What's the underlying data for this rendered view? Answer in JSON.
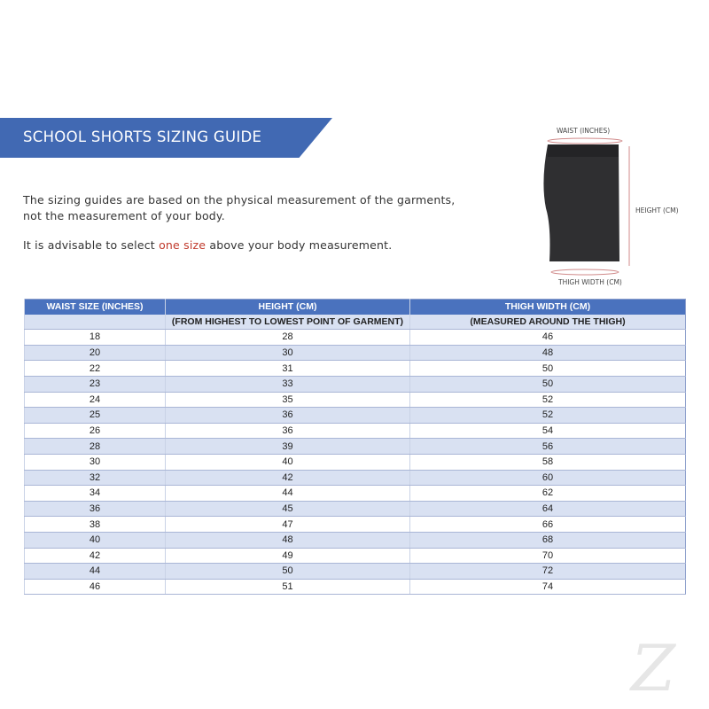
{
  "title": "SCHOOL SHORTS SIZING GUIDE",
  "intro_line1": "The sizing guides are based on the physical measurement of the garments,",
  "intro_line2": "not the measurement of your body.",
  "advice_pre": "It is advisable to select ",
  "advice_highlight": "one size",
  "advice_post": " above your body measurement.",
  "highlight_color": "#c0392b",
  "accent_color": "#4169b3",
  "figure": {
    "waist": "WAIST (INCHES)",
    "height": "HEIGHT (CM)",
    "thigh": "THIGH WIDTH (CM)"
  },
  "table": {
    "headers": [
      "WAIST SIZE (INCHES)",
      "HEIGHT (CM)",
      "THIGH WIDTH (CM)"
    ],
    "subheaders": [
      "",
      "(FROM HIGHEST TO LOWEST POINT OF GARMENT)",
      "(MEASURED AROUND THE THIGH)"
    ],
    "rows": [
      [
        "18",
        "28",
        "46"
      ],
      [
        "20",
        "30",
        "48"
      ],
      [
        "22",
        "31",
        "50"
      ],
      [
        "23",
        "33",
        "50"
      ],
      [
        "24",
        "35",
        "52"
      ],
      [
        "25",
        "36",
        "52"
      ],
      [
        "26",
        "36",
        "54"
      ],
      [
        "28",
        "39",
        "56"
      ],
      [
        "30",
        "40",
        "58"
      ],
      [
        "32",
        "42",
        "60"
      ],
      [
        "34",
        "44",
        "62"
      ],
      [
        "36",
        "45",
        "64"
      ],
      [
        "38",
        "47",
        "66"
      ],
      [
        "40",
        "48",
        "68"
      ],
      [
        "42",
        "49",
        "70"
      ],
      [
        "44",
        "50",
        "72"
      ],
      [
        "46",
        "51",
        "74"
      ]
    ]
  },
  "watermark": "Z"
}
